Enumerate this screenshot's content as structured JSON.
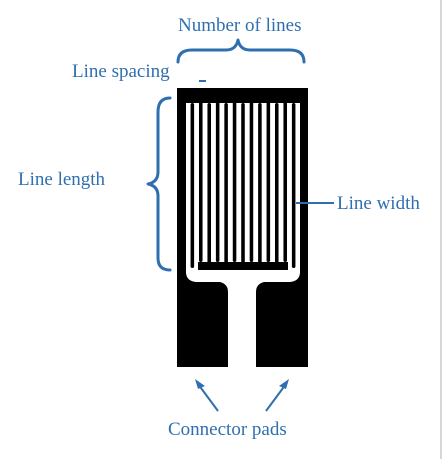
{
  "labels": {
    "number_of_lines": "Number of lines",
    "line_spacing": "Line spacing",
    "line_length": "Line length",
    "line_width": "Line width",
    "connector_pads": "Connector pads"
  },
  "colors": {
    "annotation": "#2f6fb0",
    "conductor": "#000000",
    "background": "#ffffff"
  },
  "grid_line_count": 13
}
